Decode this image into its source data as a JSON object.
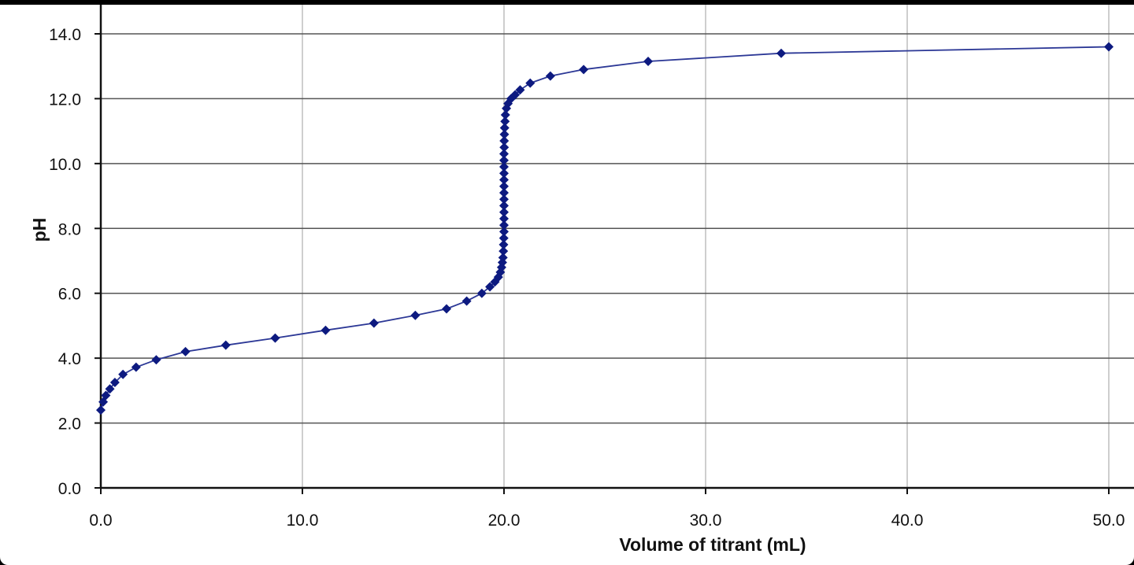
{
  "chart_data": {
    "type": "line",
    "title": "",
    "xlabel": "Volume of titrant (mL)",
    "ylabel": "pH",
    "xlim": [
      0,
      50
    ],
    "ylim": [
      0,
      14
    ],
    "x_ticks": [
      "0.0",
      "10.0",
      "20.0",
      "30.0",
      "40.0",
      "50.0"
    ],
    "y_ticks": [
      "0.0",
      "2.0",
      "4.0",
      "6.0",
      "8.0",
      "10.0",
      "12.0",
      "14.0"
    ],
    "grid": true,
    "legend": "none",
    "series_color": "#2c3896",
    "marker_color": "#0d1a80",
    "marker": "diamond",
    "series": [
      {
        "values": [
          [
            0.0,
            2.4
          ],
          [
            0.12,
            2.65
          ],
          [
            0.25,
            2.85
          ],
          [
            0.45,
            3.05
          ],
          [
            0.7,
            3.25
          ],
          [
            1.1,
            3.5
          ],
          [
            1.75,
            3.72
          ],
          [
            2.75,
            3.95
          ],
          [
            4.2,
            4.2
          ],
          [
            6.2,
            4.4
          ],
          [
            8.65,
            4.62
          ],
          [
            11.15,
            4.86
          ],
          [
            13.55,
            5.08
          ],
          [
            15.6,
            5.32
          ],
          [
            17.15,
            5.52
          ],
          [
            18.15,
            5.76
          ],
          [
            18.9,
            6.0
          ],
          [
            19.3,
            6.2
          ],
          [
            19.55,
            6.35
          ],
          [
            19.72,
            6.5
          ],
          [
            19.82,
            6.65
          ],
          [
            19.88,
            6.8
          ],
          [
            19.92,
            6.95
          ],
          [
            19.95,
            7.1
          ],
          [
            19.97,
            7.3
          ],
          [
            19.98,
            7.5
          ],
          [
            19.99,
            7.7
          ],
          [
            20.0,
            7.9
          ],
          [
            20.0,
            8.1
          ],
          [
            20.0,
            8.3
          ],
          [
            20.0,
            8.5
          ],
          [
            20.0,
            8.7
          ],
          [
            20.0,
            8.9
          ],
          [
            20.0,
            9.1
          ],
          [
            20.0,
            9.3
          ],
          [
            20.0,
            9.5
          ],
          [
            20.0,
            9.7
          ],
          [
            20.0,
            9.9
          ],
          [
            20.0,
            10.1
          ],
          [
            20.0,
            10.3
          ],
          [
            20.01,
            10.5
          ],
          [
            20.01,
            10.7
          ],
          [
            20.02,
            10.9
          ],
          [
            20.03,
            11.1
          ],
          [
            20.05,
            11.3
          ],
          [
            20.07,
            11.5
          ],
          [
            20.12,
            11.7
          ],
          [
            20.2,
            11.85
          ],
          [
            20.35,
            12.0
          ],
          [
            20.55,
            12.12
          ],
          [
            20.8,
            12.27
          ],
          [
            21.3,
            12.48
          ],
          [
            22.3,
            12.7
          ],
          [
            23.95,
            12.9
          ],
          [
            27.15,
            13.15
          ],
          [
            33.75,
            13.4
          ],
          [
            50.0,
            13.6
          ]
        ]
      }
    ]
  }
}
